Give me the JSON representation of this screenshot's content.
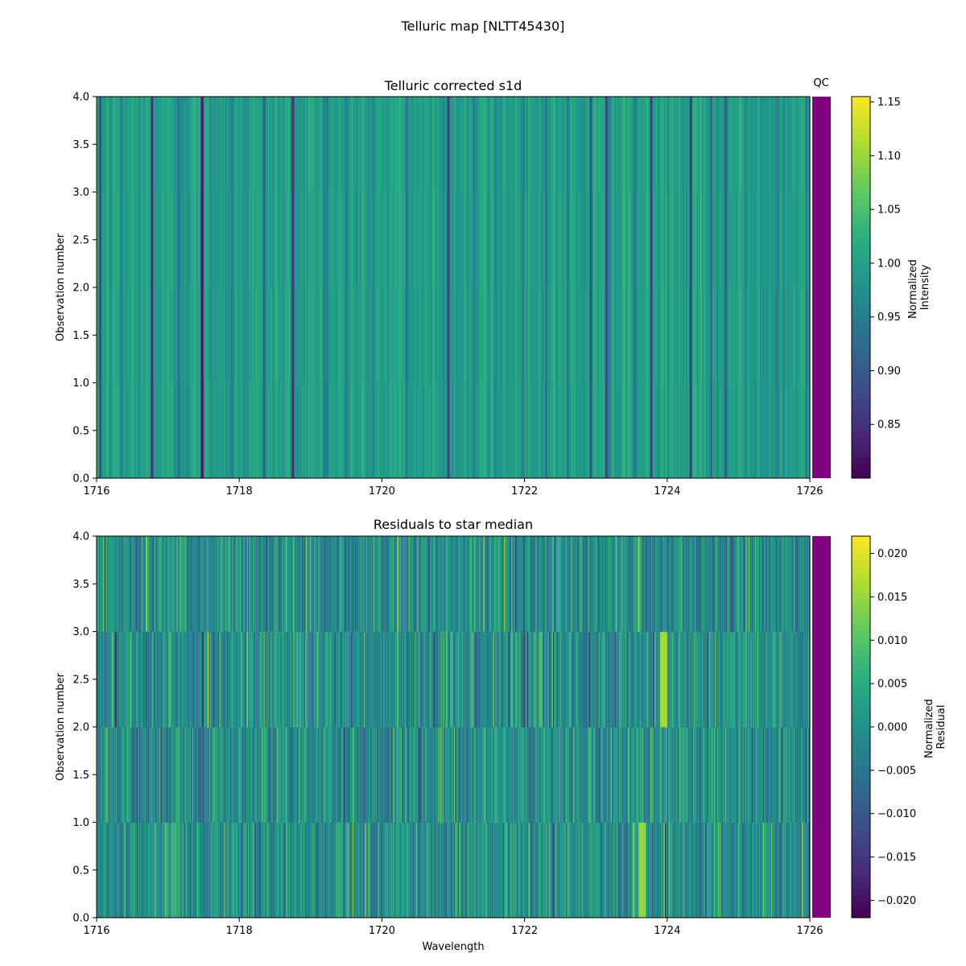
{
  "figure": {
    "suptitle": "Telluric map [NLTT45430]"
  },
  "chart_data": [
    {
      "type": "heatmap",
      "title": "Telluric corrected s1d",
      "xlabel": "",
      "ylabel": "Observation number",
      "xlim": [
        1716,
        1726
      ],
      "ylim": [
        0.0,
        4.0
      ],
      "xticks": [
        "1716",
        "1718",
        "1720",
        "1722",
        "1724",
        "1726"
      ],
      "yticks": [
        "0.0",
        "0.5",
        "1.0",
        "1.5",
        "2.0",
        "2.5",
        "3.0",
        "3.5",
        "4.0"
      ],
      "rows": 4,
      "colormap": "viridis",
      "vmin": 0.8,
      "vmax": 1.155,
      "baseline": 1.0,
      "absorption_lines": [
        [
          1716.05,
          0.86,
          0.03
        ],
        [
          1716.35,
          0.94,
          0.03
        ],
        [
          1716.78,
          0.84,
          0.03
        ],
        [
          1717.15,
          0.95,
          0.04
        ],
        [
          1717.48,
          0.82,
          0.04
        ],
        [
          1717.9,
          0.95,
          0.04
        ],
        [
          1718.35,
          0.9,
          0.04
        ],
        [
          1718.75,
          0.85,
          0.04
        ],
        [
          1719.2,
          0.94,
          0.04
        ],
        [
          1719.5,
          0.93,
          0.04
        ],
        [
          1719.85,
          0.96,
          0.05
        ],
        [
          1720.35,
          0.95,
          0.05
        ],
        [
          1720.93,
          0.81,
          0.03
        ],
        [
          1721.3,
          0.94,
          0.04
        ],
        [
          1721.6,
          0.95,
          0.04
        ],
        [
          1722.3,
          0.94,
          0.04
        ],
        [
          1722.6,
          0.93,
          0.04
        ],
        [
          1722.93,
          0.82,
          0.03
        ],
        [
          1723.15,
          0.86,
          0.03
        ],
        [
          1723.55,
          0.94,
          0.04
        ],
        [
          1723.78,
          0.85,
          0.03
        ],
        [
          1724.33,
          0.82,
          0.03
        ],
        [
          1724.62,
          0.86,
          0.03
        ],
        [
          1724.82,
          0.87,
          0.03
        ],
        [
          1725.1,
          0.95,
          0.03
        ],
        [
          1725.55,
          0.93,
          0.04
        ],
        [
          1725.95,
          0.9,
          0.03
        ]
      ],
      "colorbar": {
        "label_lines": [
          "Normalized",
          "Intensity"
        ],
        "range": [
          0.8,
          1.155
        ],
        "ticks": [
          "0.85",
          "0.90",
          "0.95",
          "1.00",
          "1.05",
          "1.10",
          "1.15"
        ]
      },
      "qc": {
        "label": "QC",
        "color": "#800080"
      }
    },
    {
      "type": "heatmap",
      "title": "Residuals to star median",
      "xlabel": "Wavelength",
      "ylabel": "Observation number",
      "xlim": [
        1716,
        1726
      ],
      "ylim": [
        0.0,
        4.0
      ],
      "xticks": [
        "1716",
        "1718",
        "1720",
        "1722",
        "1724",
        "1726"
      ],
      "yticks": [
        "0.0",
        "0.5",
        "1.0",
        "1.5",
        "2.0",
        "2.5",
        "3.0",
        "3.5",
        "4.0"
      ],
      "rows": 4,
      "colormap": "viridis",
      "vmin": -0.022,
      "vmax": 0.022,
      "highlight_features": [
        {
          "row": 0,
          "x": 1723.65,
          "value": 0.015
        },
        {
          "row": 2,
          "x": 1723.95,
          "value": 0.016
        }
      ],
      "colorbar": {
        "label_lines": [
          "Normalized",
          "Residual"
        ],
        "range": [
          -0.022,
          0.022
        ],
        "ticks": [
          "-0.020",
          "-0.015",
          "-0.010",
          "-0.005",
          "0.000",
          "0.005",
          "0.010",
          "0.015",
          "0.020"
        ]
      },
      "qc": {
        "label": "",
        "color": "#800080"
      }
    }
  ]
}
